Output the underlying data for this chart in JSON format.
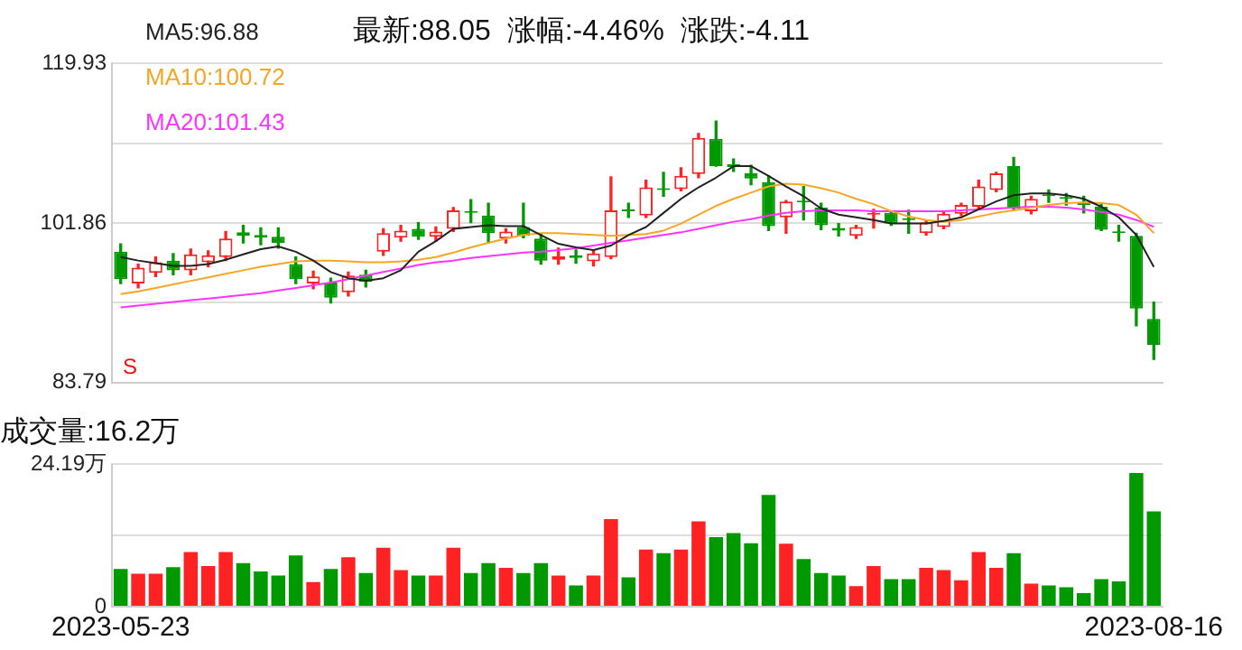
{
  "chart_data": [
    {
      "type": "candlestick",
      "title": "最新:88.05  涨幅:-4.46%  涨跌:-4.11",
      "categories": [
        "2023-05-23",
        null,
        null,
        null,
        null,
        null,
        null,
        null,
        null,
        null,
        null,
        null,
        null,
        null,
        null,
        null,
        null,
        null,
        null,
        null,
        null,
        null,
        null,
        null,
        null,
        null,
        null,
        null,
        null,
        null,
        null,
        null,
        null,
        null,
        null,
        null,
        null,
        null,
        null,
        null,
        null,
        null,
        null,
        null,
        null,
        null,
        null,
        null,
        null,
        null,
        null,
        null,
        null,
        null,
        null,
        null,
        null,
        null,
        null,
        "2023-08-16"
      ],
      "ohlc": [
        [
          98.6,
          99.5,
          95.0,
          95.5
        ],
        [
          95.0,
          97.2,
          94.5,
          96.8
        ],
        [
          96.2,
          98.0,
          95.8,
          97.4
        ],
        [
          97.6,
          98.4,
          96.0,
          96.5
        ],
        [
          96.5,
          98.9,
          96.0,
          98.3
        ],
        [
          97.4,
          98.7,
          96.9,
          98.2
        ],
        [
          98.0,
          100.9,
          97.6,
          100.1
        ],
        [
          100.8,
          101.6,
          99.6,
          100.4
        ],
        [
          100.5,
          101.3,
          99.4,
          100.2
        ],
        [
          100.3,
          101.3,
          99.0,
          99.6
        ],
        [
          97.2,
          98.0,
          95.0,
          95.5
        ],
        [
          95.0,
          96.4,
          94.4,
          95.8
        ],
        [
          95.1,
          95.6,
          92.8,
          93.4
        ],
        [
          94.0,
          96.3,
          93.6,
          95.9
        ],
        [
          96.0,
          96.5,
          94.6,
          95.2
        ],
        [
          98.6,
          101.2,
          98.2,
          100.7
        ],
        [
          100.2,
          101.6,
          99.8,
          101.0
        ],
        [
          101.2,
          101.9,
          100.0,
          100.3
        ],
        [
          100.3,
          101.4,
          99.8,
          100.9
        ],
        [
          101.2,
          103.6,
          100.9,
          103.3
        ],
        [
          103.2,
          104.5,
          101.9,
          103.0
        ],
        [
          102.7,
          104.1,
          99.6,
          100.7
        ],
        [
          100.1,
          101.2,
          99.6,
          100.9
        ],
        [
          101.4,
          104.1,
          100.2,
          100.4
        ],
        [
          100.1,
          100.6,
          97.2,
          97.6
        ],
        [
          97.7,
          99.0,
          97.2,
          98.1
        ],
        [
          98.2,
          98.8,
          97.3,
          97.9
        ],
        [
          97.5,
          98.8,
          97.0,
          98.4
        ],
        [
          98.0,
          107.1,
          97.8,
          103.3
        ],
        [
          103.4,
          104.1,
          102.5,
          103.2
        ],
        [
          102.7,
          106.7,
          102.5,
          105.9
        ],
        [
          105.8,
          107.6,
          104.9,
          105.6
        ],
        [
          105.7,
          108.1,
          105.5,
          107.2
        ],
        [
          107.4,
          112.0,
          107.0,
          111.5
        ],
        [
          111.4,
          113.4,
          108.3,
          108.3
        ],
        [
          108.5,
          109.1,
          107.7,
          108.2
        ],
        [
          107.5,
          108.4,
          106.2,
          106.9
        ],
        [
          106.5,
          107.2,
          101.0,
          101.5
        ],
        [
          102.5,
          104.4,
          100.7,
          104.3
        ],
        [
          104.4,
          106.0,
          102.2,
          104.2
        ],
        [
          103.6,
          104.1,
          101.1,
          101.6
        ],
        [
          101.3,
          101.8,
          100.4,
          101.0
        ],
        [
          100.4,
          101.6,
          100.1,
          101.4
        ],
        [
          102.8,
          103.4,
          101.3,
          103.0
        ],
        [
          103.0,
          103.1,
          101.6,
          101.8
        ],
        [
          102.3,
          103.3,
          100.7,
          102.2
        ],
        [
          100.7,
          102.2,
          100.5,
          101.9
        ],
        [
          101.4,
          103.1,
          101.2,
          102.9
        ],
        [
          102.9,
          104.1,
          102.7,
          103.9
        ],
        [
          103.7,
          106.7,
          103.5,
          106.0
        ],
        [
          105.6,
          107.6,
          105.4,
          107.5
        ],
        [
          108.3,
          109.3,
          103.4,
          103.5
        ],
        [
          103.2,
          104.9,
          102.9,
          104.6
        ],
        [
          105.0,
          105.6,
          104.2,
          104.9
        ],
        [
          104.7,
          105.2,
          103.9,
          104.6
        ],
        [
          104.0,
          104.9,
          103.0,
          103.9
        ],
        [
          103.7,
          104.0,
          101.0,
          101.1
        ],
        [
          100.8,
          101.6,
          99.8,
          100.7
        ],
        [
          100.4,
          100.7,
          90.2,
          92.16
        ],
        [
          91.0,
          92.9,
          86.4,
          88.05
        ]
      ],
      "colors": [
        "#009900",
        "#ff2222",
        "#ff2222",
        "#009900",
        "#ff2222",
        "#ff2222",
        "#ff2222",
        "#009900",
        "#009900",
        "#009900",
        "#009900",
        "#ff2222",
        "#009900",
        "#ff2222",
        "#009900",
        "#ff2222",
        "#ff2222",
        "#009900",
        "#ff2222",
        "#ff2222",
        "#009900",
        "#009900",
        "#ff2222",
        "#009900",
        "#009900",
        "#ff2222",
        "#009900",
        "#ff2222",
        "#ff2222",
        "#009900",
        "#ff2222",
        "#009900",
        "#ff2222",
        "#ff2222",
        "#009900",
        "#009900",
        "#009900",
        "#009900",
        "#ff2222",
        "#009900",
        "#009900",
        "#009900",
        "#ff2222",
        "#ff2222",
        "#009900",
        "#009900",
        "#ff2222",
        "#ff2222",
        "#ff2222",
        "#ff2222",
        "#ff2222",
        "#009900",
        "#ff2222",
        "#009900",
        "#009900",
        "#009900",
        "#009900",
        "#009900",
        "#009900",
        "#009900"
      ],
      "series": [
        {
          "type": "line",
          "name": "MA5:96.88",
          "color": "#222222",
          "values": [
            98.0,
            97.6,
            97.3,
            97.0,
            97.0,
            97.2,
            97.7,
            98.3,
            98.9,
            99.2,
            98.6,
            97.6,
            96.3,
            95.6,
            95.3,
            95.6,
            96.5,
            98.6,
            99.8,
            101.2,
            101.4,
            101.6,
            101.5,
            101.5,
            100.5,
            99.5,
            99.1,
            98.8,
            99.3,
            100.5,
            101.4,
            103.0,
            104.6,
            105.9,
            107.0,
            108.3,
            108.3,
            107.2,
            106.0,
            104.9,
            103.5,
            102.8,
            102.5,
            102.2,
            101.8,
            101.8,
            101.8,
            102.1,
            102.5,
            103.4,
            104.3,
            105.0,
            105.2,
            105.2,
            105.0,
            104.6,
            103.7,
            102.5,
            100.5,
            96.88
          ]
        },
        {
          "type": "line",
          "name": "MA10:100.72",
          "color": "#f5a623",
          "values": [
            93.8,
            94.1,
            94.5,
            94.9,
            95.3,
            95.7,
            96.1,
            96.5,
            96.9,
            97.2,
            97.5,
            97.6,
            97.6,
            97.5,
            97.4,
            97.4,
            97.5,
            97.7,
            98.0,
            98.5,
            99.1,
            99.6,
            100.1,
            100.5,
            100.7,
            100.7,
            100.6,
            100.5,
            100.4,
            100.5,
            100.6,
            101.0,
            101.8,
            102.8,
            103.8,
            104.6,
            105.3,
            106.0,
            106.3,
            106.2,
            105.8,
            105.3,
            104.6,
            104.0,
            103.2,
            102.6,
            102.2,
            102.0,
            102.2,
            102.6,
            103.0,
            103.3,
            103.6,
            103.9,
            104.1,
            104.2,
            104.1,
            103.9,
            102.8,
            100.72
          ]
        },
        {
          "type": "line",
          "name": "MA20:101.43",
          "color": "#ff33ff",
          "values": [
            92.3,
            92.5,
            92.7,
            92.9,
            93.1,
            93.3,
            93.5,
            93.7,
            93.9,
            94.2,
            94.5,
            94.8,
            95.1,
            95.5,
            95.9,
            96.3,
            96.7,
            97.1,
            97.4,
            97.6,
            97.9,
            98.1,
            98.3,
            98.5,
            98.6,
            98.8,
            99.0,
            99.3,
            99.6,
            99.9,
            100.2,
            100.5,
            100.8,
            101.2,
            101.6,
            102.0,
            102.3,
            102.7,
            103.0,
            103.2,
            103.3,
            103.3,
            103.3,
            103.2,
            103.2,
            103.2,
            103.2,
            103.2,
            103.3,
            103.4,
            103.5,
            103.6,
            103.7,
            103.7,
            103.6,
            103.4,
            103.1,
            102.8,
            102.2,
            101.43
          ]
        }
      ],
      "ylim": [
        83.79,
        119.93
      ],
      "yticks": [
        83.79,
        {
          "value": 92.825,
          "label": null
        },
        101.86,
        {
          "value": 110.895,
          "label": null
        },
        119.93
      ],
      "grid": "y",
      "legend": "top left",
      "tick_labels": "y",
      "annotations": [
        "S"
      ]
    },
    {
      "type": "bar",
      "title": "成交量:16.2万",
      "categories": [
        "2023-05-23",
        null,
        null,
        null,
        null,
        null,
        null,
        null,
        null,
        null,
        null,
        null,
        null,
        null,
        null,
        null,
        null,
        null,
        null,
        null,
        null,
        null,
        null,
        null,
        null,
        null,
        null,
        null,
        null,
        null,
        null,
        null,
        null,
        null,
        null,
        null,
        null,
        null,
        null,
        null,
        null,
        null,
        null,
        null,
        null,
        null,
        null,
        null,
        null,
        null,
        null,
        null,
        null,
        null,
        null,
        null,
        null,
        null,
        null,
        "2023-08-16"
      ],
      "values": [
        6.4,
        5.6,
        5.6,
        6.7,
        9.3,
        6.9,
        9.3,
        7.4,
        6.0,
        5.3,
        8.7,
        4.2,
        6.4,
        8.4,
        5.7,
        10.0,
        6.2,
        5.3,
        5.3,
        10.0,
        5.7,
        7.4,
        6.6,
        5.7,
        7.4,
        5.3,
        3.6,
        5.3,
        14.9,
        5.0,
        9.7,
        9.1,
        9.7,
        14.5,
        11.8,
        12.5,
        10.8,
        19.0,
        10.7,
        8.1,
        5.7,
        5.3,
        3.5,
        6.9,
        4.7,
        4.7,
        6.6,
        6.2,
        4.5,
        9.3,
        6.6,
        9.1,
        3.9,
        3.6,
        3.3,
        2.3,
        4.7,
        4.3,
        22.7,
        16.2
      ],
      "colors": [
        "#009900",
        "#ff2222",
        "#ff2222",
        "#009900",
        "#ff2222",
        "#ff2222",
        "#ff2222",
        "#009900",
        "#009900",
        "#009900",
        "#009900",
        "#ff2222",
        "#009900",
        "#ff2222",
        "#009900",
        "#ff2222",
        "#ff2222",
        "#009900",
        "#ff2222",
        "#ff2222",
        "#009900",
        "#009900",
        "#ff2222",
        "#009900",
        "#009900",
        "#ff2222",
        "#009900",
        "#ff2222",
        "#ff2222",
        "#009900",
        "#ff2222",
        "#009900",
        "#ff2222",
        "#ff2222",
        "#009900",
        "#009900",
        "#009900",
        "#009900",
        "#ff2222",
        "#009900",
        "#009900",
        "#009900",
        "#ff2222",
        "#ff2222",
        "#009900",
        "#009900",
        "#ff2222",
        "#ff2222",
        "#ff2222",
        "#ff2222",
        "#ff2222",
        "#009900",
        "#ff2222",
        "#009900",
        "#009900",
        "#009900",
        "#009900",
        "#009900",
        "#009900",
        "#009900"
      ],
      "ylim": [
        0,
        24.19
      ],
      "yticks": [
        0,
        {
          "value": 12.095,
          "label": null
        },
        {
          "value": 24.19,
          "label": "24.19万"
        }
      ],
      "grid": "y"
    }
  ]
}
